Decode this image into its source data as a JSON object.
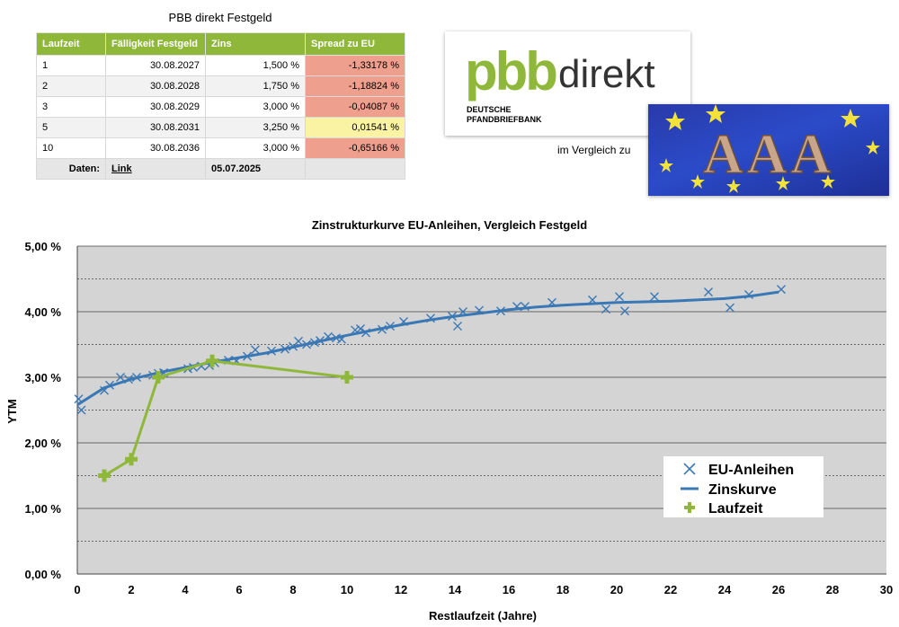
{
  "table": {
    "title": "PBB direkt Festgeld",
    "headers": [
      "Laufzeit",
      "Fälligkeit Festgeld",
      "Zins",
      "Spread zu EU"
    ],
    "rows": [
      {
        "laufzeit": "1",
        "faelligkeit": "30.08.2027",
        "zins": "1,500 %",
        "spread": "-1,33178 %"
      },
      {
        "laufzeit": "2",
        "faelligkeit": "30.08.2028",
        "zins": "1,750 %",
        "spread": "-1,18824 %"
      },
      {
        "laufzeit": "3",
        "faelligkeit": "30.08.2029",
        "zins": "3,000 %",
        "spread": "-0,04087 %"
      },
      {
        "laufzeit": "5",
        "faelligkeit": "30.08.2031",
        "zins": "3,250 %",
        "spread": "0,01541 %"
      },
      {
        "laufzeit": "10",
        "faelligkeit": "30.08.2036",
        "zins": "3,000 %",
        "spread": "-0,65166 %"
      }
    ],
    "footer": {
      "label": "Daten:",
      "link": "Link",
      "date": "05.07.2025"
    }
  },
  "logo": {
    "brand_pbb": "pbb",
    "brand_direkt": "direkt",
    "line1": "DEUTSCHE",
    "line2": "PFANDBRIEFBANK"
  },
  "badge": {
    "text": "AAA"
  },
  "compare_text": "im Vergleich zu",
  "colors": {
    "green": "#8fb83a",
    "blue": "#3a78b5",
    "negative_spread": "#ef9f8d",
    "positive_spread": "#fbf3a4"
  },
  "chart_data": {
    "type": "scatter",
    "title": "Zinstrukturkurve EU-Anleihen, Vergleich Festgeld",
    "xlabel": "Restlaufzeit (Jahre)",
    "ylabel": "YTM",
    "xlim": [
      0,
      30
    ],
    "ylim": [
      0,
      5
    ],
    "x_ticks": [
      "0",
      "2",
      "4",
      "6",
      "8",
      "10",
      "12",
      "14",
      "16",
      "18",
      "20",
      "22",
      "24",
      "26",
      "28",
      "30"
    ],
    "y_ticks": [
      "0,00 %",
      "1,00 %",
      "2,00 %",
      "3,00 %",
      "4,00 %",
      "5,00 %"
    ],
    "grid": true,
    "legend_position": "bottom-right",
    "series": [
      {
        "name": "EU-Anleihen",
        "kind": "scatter",
        "color": "#3a78b5",
        "points": [
          [
            0.05,
            2.67
          ],
          [
            0.15,
            2.5
          ],
          [
            1.0,
            2.8
          ],
          [
            1.2,
            2.88
          ],
          [
            1.6,
            3.0
          ],
          [
            1.9,
            2.97
          ],
          [
            2.2,
            3.0
          ],
          [
            2.8,
            3.03
          ],
          [
            3.0,
            3.06
          ],
          [
            3.2,
            3.07
          ],
          [
            4.1,
            3.13
          ],
          [
            4.3,
            3.15
          ],
          [
            4.6,
            3.17
          ],
          [
            4.9,
            3.18
          ],
          [
            5.1,
            3.22
          ],
          [
            5.6,
            3.26
          ],
          [
            5.9,
            3.25
          ],
          [
            6.3,
            3.32
          ],
          [
            6.6,
            3.42
          ],
          [
            7.2,
            3.4
          ],
          [
            7.7,
            3.43
          ],
          [
            8.0,
            3.47
          ],
          [
            8.2,
            3.55
          ],
          [
            8.5,
            3.5
          ],
          [
            8.8,
            3.53
          ],
          [
            9.0,
            3.56
          ],
          [
            9.3,
            3.62
          ],
          [
            9.6,
            3.6
          ],
          [
            9.8,
            3.58
          ],
          [
            10.3,
            3.72
          ],
          [
            10.5,
            3.74
          ],
          [
            10.7,
            3.68
          ],
          [
            11.3,
            3.73
          ],
          [
            11.6,
            3.78
          ],
          [
            12.1,
            3.85
          ],
          [
            13.1,
            3.9
          ],
          [
            13.9,
            3.93
          ],
          [
            14.1,
            3.78
          ],
          [
            14.3,
            4.0
          ],
          [
            14.9,
            4.02
          ],
          [
            15.7,
            4.01
          ],
          [
            16.3,
            4.08
          ],
          [
            16.6,
            4.08
          ],
          [
            17.6,
            4.14
          ],
          [
            19.1,
            4.18
          ],
          [
            19.6,
            4.04
          ],
          [
            20.1,
            4.23
          ],
          [
            20.3,
            4.01
          ],
          [
            21.4,
            4.23
          ],
          [
            23.4,
            4.3
          ],
          [
            24.2,
            4.06
          ],
          [
            24.9,
            4.26
          ],
          [
            26.1,
            4.34
          ]
        ]
      },
      {
        "name": "Zinskurve",
        "kind": "line",
        "color": "#3a78b5",
        "points": [
          [
            0,
            2.58
          ],
          [
            1,
            2.84
          ],
          [
            2,
            2.97
          ],
          [
            3,
            3.07
          ],
          [
            4,
            3.15
          ],
          [
            5,
            3.23
          ],
          [
            6,
            3.3
          ],
          [
            7,
            3.37
          ],
          [
            8,
            3.46
          ],
          [
            9,
            3.55
          ],
          [
            10,
            3.64
          ],
          [
            11,
            3.72
          ],
          [
            12,
            3.8
          ],
          [
            13,
            3.87
          ],
          [
            14,
            3.93
          ],
          [
            15,
            3.98
          ],
          [
            16,
            4.03
          ],
          [
            17,
            4.07
          ],
          [
            18,
            4.1
          ],
          [
            19,
            4.12
          ],
          [
            20,
            4.14
          ],
          [
            22,
            4.16
          ],
          [
            24,
            4.2
          ],
          [
            25,
            4.24
          ],
          [
            26,
            4.3
          ]
        ]
      },
      {
        "name": "Laufzeit",
        "kind": "line-marker",
        "color": "#8fb83a",
        "points": [
          [
            1,
            1.5
          ],
          [
            2,
            1.75
          ],
          [
            3,
            3.0
          ],
          [
            5,
            3.25
          ],
          [
            10,
            3.0
          ]
        ]
      }
    ]
  }
}
